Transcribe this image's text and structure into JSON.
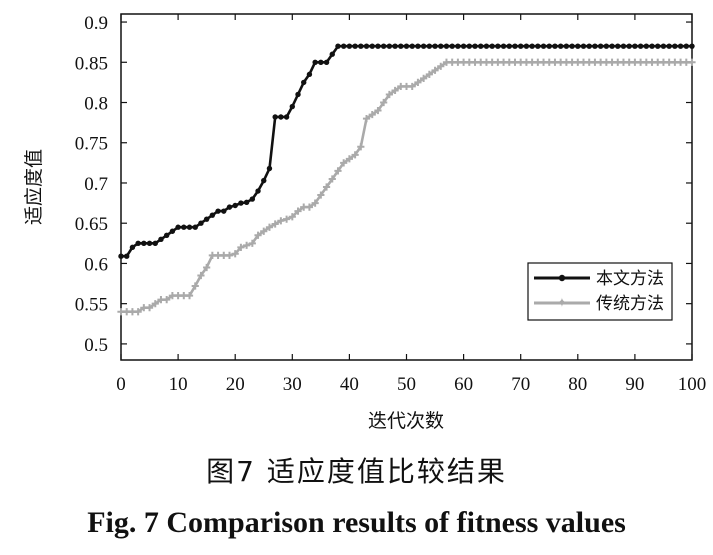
{
  "caption": {
    "cn": "图7  适应度值比较结果",
    "en": "Fig. 7  Comparison results of fitness values"
  },
  "chart_data": {
    "type": "line",
    "xlabel": "迭代次数",
    "ylabel": "适应度值",
    "xlim": [
      0,
      100
    ],
    "ylim": [
      0.48,
      0.91
    ],
    "xticks": [
      0,
      10,
      20,
      30,
      40,
      50,
      60,
      70,
      80,
      90,
      100
    ],
    "yticks": [
      0.5,
      0.55,
      0.6,
      0.65,
      0.7,
      0.75,
      0.8,
      0.85,
      0.9
    ],
    "legend_position": "lower-right",
    "grid": false,
    "series": [
      {
        "name": "本文方法",
        "color": "#111111",
        "marker": "circle",
        "points": [
          [
            0,
            0.609
          ],
          [
            1,
            0.609
          ],
          [
            2,
            0.62
          ],
          [
            3,
            0.625
          ],
          [
            5,
            0.625
          ],
          [
            6,
            0.625
          ],
          [
            7,
            0.63
          ],
          [
            9,
            0.64
          ],
          [
            10,
            0.645
          ],
          [
            11,
            0.645
          ],
          [
            13,
            0.645
          ],
          [
            14,
            0.65
          ],
          [
            15,
            0.655
          ],
          [
            16,
            0.66
          ],
          [
            17,
            0.665
          ],
          [
            18,
            0.665
          ],
          [
            19,
            0.67
          ],
          [
            20,
            0.672
          ],
          [
            21,
            0.675
          ],
          [
            22,
            0.676
          ],
          [
            23,
            0.68
          ],
          [
            24,
            0.69
          ],
          [
            25,
            0.703
          ],
          [
            26,
            0.718
          ],
          [
            27,
            0.782
          ],
          [
            28,
            0.782
          ],
          [
            29,
            0.782
          ],
          [
            30,
            0.795
          ],
          [
            31,
            0.81
          ],
          [
            32,
            0.825
          ],
          [
            33,
            0.835
          ],
          [
            34,
            0.85
          ],
          [
            35,
            0.85
          ],
          [
            36,
            0.85
          ],
          [
            37,
            0.86
          ],
          [
            38,
            0.87
          ],
          [
            100,
            0.87
          ]
        ]
      },
      {
        "name": "传统方法",
        "color": "#aaaaaa",
        "marker": "star",
        "points": [
          [
            0,
            0.54
          ],
          [
            1,
            0.54
          ],
          [
            2,
            0.54
          ],
          [
            3,
            0.54
          ],
          [
            4,
            0.545
          ],
          [
            5,
            0.545
          ],
          [
            6,
            0.55
          ],
          [
            7,
            0.555
          ],
          [
            8,
            0.555
          ],
          [
            9,
            0.56
          ],
          [
            10,
            0.56
          ],
          [
            11,
            0.56
          ],
          [
            12,
            0.56
          ],
          [
            13,
            0.572
          ],
          [
            14,
            0.585
          ],
          [
            15,
            0.595
          ],
          [
            16,
            0.61
          ],
          [
            17,
            0.61
          ],
          [
            19,
            0.61
          ],
          [
            20,
            0.612
          ],
          [
            21,
            0.62
          ],
          [
            23,
            0.625
          ],
          [
            24,
            0.635
          ],
          [
            25,
            0.64
          ],
          [
            26,
            0.645
          ],
          [
            28,
            0.653
          ],
          [
            29,
            0.655
          ],
          [
            30,
            0.658
          ],
          [
            31,
            0.665
          ],
          [
            32,
            0.67
          ],
          [
            33,
            0.67
          ],
          [
            34,
            0.675
          ],
          [
            35,
            0.685
          ],
          [
            36,
            0.695
          ],
          [
            37,
            0.705
          ],
          [
            38,
            0.715
          ],
          [
            39,
            0.725
          ],
          [
            40,
            0.73
          ],
          [
            41,
            0.735
          ],
          [
            42,
            0.745
          ],
          [
            43,
            0.78
          ],
          [
            44,
            0.785
          ],
          [
            45,
            0.79
          ],
          [
            46,
            0.8
          ],
          [
            47,
            0.81
          ],
          [
            48,
            0.815
          ],
          [
            49,
            0.82
          ],
          [
            50,
            0.82
          ],
          [
            51,
            0.82
          ],
          [
            52,
            0.825
          ],
          [
            53,
            0.83
          ],
          [
            54,
            0.835
          ],
          [
            55,
            0.84
          ],
          [
            56,
            0.845
          ],
          [
            57,
            0.85
          ],
          [
            100,
            0.85
          ]
        ]
      }
    ]
  }
}
